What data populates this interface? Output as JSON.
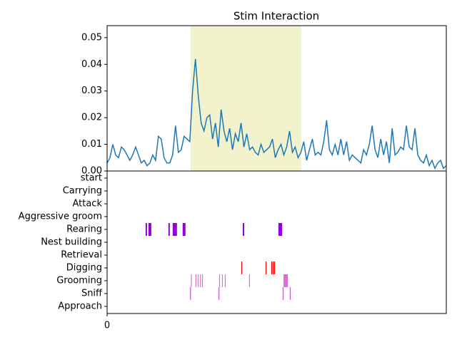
{
  "chart_data": [
    {
      "type": "line",
      "title": "Stim Interaction",
      "color": "#1f77b4",
      "values": [
        0.003,
        0.005,
        0.01,
        0.006,
        0.005,
        0.009,
        0.008,
        0.006,
        0.004,
        0.006,
        0.009,
        0.006,
        0.003,
        0.004,
        0.002,
        0.003,
        0.006,
        0.004,
        0.013,
        0.012,
        0.005,
        0.003,
        0.003,
        0.006,
        0.017,
        0.007,
        0.008,
        0.013,
        0.012,
        0.011,
        0.03,
        0.042,
        0.028,
        0.018,
        0.015,
        0.02,
        0.021,
        0.012,
        0.018,
        0.009,
        0.023,
        0.015,
        0.011,
        0.016,
        0.008,
        0.014,
        0.011,
        0.018,
        0.009,
        0.014,
        0.008,
        0.009,
        0.007,
        0.006,
        0.01,
        0.007,
        0.008,
        0.009,
        0.012,
        0.005,
        0.008,
        0.01,
        0.006,
        0.009,
        0.015,
        0.007,
        0.009,
        0.005,
        0.007,
        0.011,
        0.004,
        0.008,
        0.012,
        0.006,
        0.007,
        0.006,
        0.011,
        0.019,
        0.008,
        0.006,
        0.01,
        0.006,
        0.012,
        0.006,
        0.011,
        0.004,
        0.006,
        0.005,
        0.004,
        0.003,
        0.008,
        0.006,
        0.01,
        0.017,
        0.008,
        0.005,
        0.012,
        0.006,
        0.011,
        0.003,
        0.016,
        0.006,
        0.007,
        0.009,
        0.008,
        0.017,
        0.009,
        0.008,
        0.016,
        0.006,
        0.004,
        0.003,
        0.006,
        0.002,
        0.004,
        0.001,
        0.003,
        0.004,
        0.001,
        0.002
      ],
      "xlim": [
        0,
        119
      ],
      "ylim": [
        0,
        0.0545
      ],
      "yticks": [
        {
          "value": 0,
          "label": "0.00"
        },
        {
          "value": 0.01,
          "label": "0.01"
        },
        {
          "value": 0.02,
          "label": "0.02"
        },
        {
          "value": 0.03,
          "label": "0.03"
        },
        {
          "value": 0.04,
          "label": "0.04"
        },
        {
          "value": 0.05,
          "label": "0.05"
        }
      ],
      "span": [
        29.3,
        68.1
      ],
      "span_color": "#f2f3cd"
    },
    {
      "type": "event",
      "xlim": [
        0,
        119
      ],
      "xticks": [
        0
      ],
      "rows": [
        {
          "label": "start"
        },
        {
          "label": "Carrying"
        },
        {
          "label": "Attack"
        },
        {
          "label": "Aggressive groom"
        },
        {
          "label": "Rearing",
          "color": "#9400d3",
          "intervals": [
            [
              13.5,
              14.0
            ],
            [
              14.5,
              15.5
            ],
            [
              21.5,
              22.0
            ],
            [
              23.0,
              24.5
            ],
            [
              26.5,
              27.5
            ],
            [
              47.6,
              48.1
            ],
            [
              60.1,
              61.4
            ]
          ]
        },
        {
          "label": "Nest building"
        },
        {
          "label": "Retrieval"
        },
        {
          "label": "Digging",
          "color": "#ee0000",
          "intervals": [
            [
              47.1,
              47.4
            ],
            [
              55.6,
              55.9
            ],
            [
              57.6,
              57.9
            ],
            [
              58.1,
              58.4
            ],
            [
              58.6,
              58.9
            ]
          ]
        },
        {
          "label": "Grooming",
          "color": "#da70d6",
          "intervals": [
            [
              29.4,
              29.7
            ],
            [
              31.0,
              31.3
            ],
            [
              31.8,
              32.1
            ],
            [
              32.6,
              32.9
            ],
            [
              33.3,
              33.6
            ],
            [
              39.3,
              39.6
            ],
            [
              40.3,
              40.6
            ],
            [
              41.3,
              41.6
            ],
            [
              49.8,
              50.1
            ],
            [
              61.9,
              63.4
            ]
          ]
        },
        {
          "label": "Sniff",
          "color": "#ba55d3",
          "intervals": [
            [
              29.1,
              29.4
            ],
            [
              39.1,
              39.4
            ],
            [
              61.6,
              61.9
            ],
            [
              64.1,
              64.4
            ]
          ]
        },
        {
          "label": "Approach"
        }
      ]
    }
  ]
}
